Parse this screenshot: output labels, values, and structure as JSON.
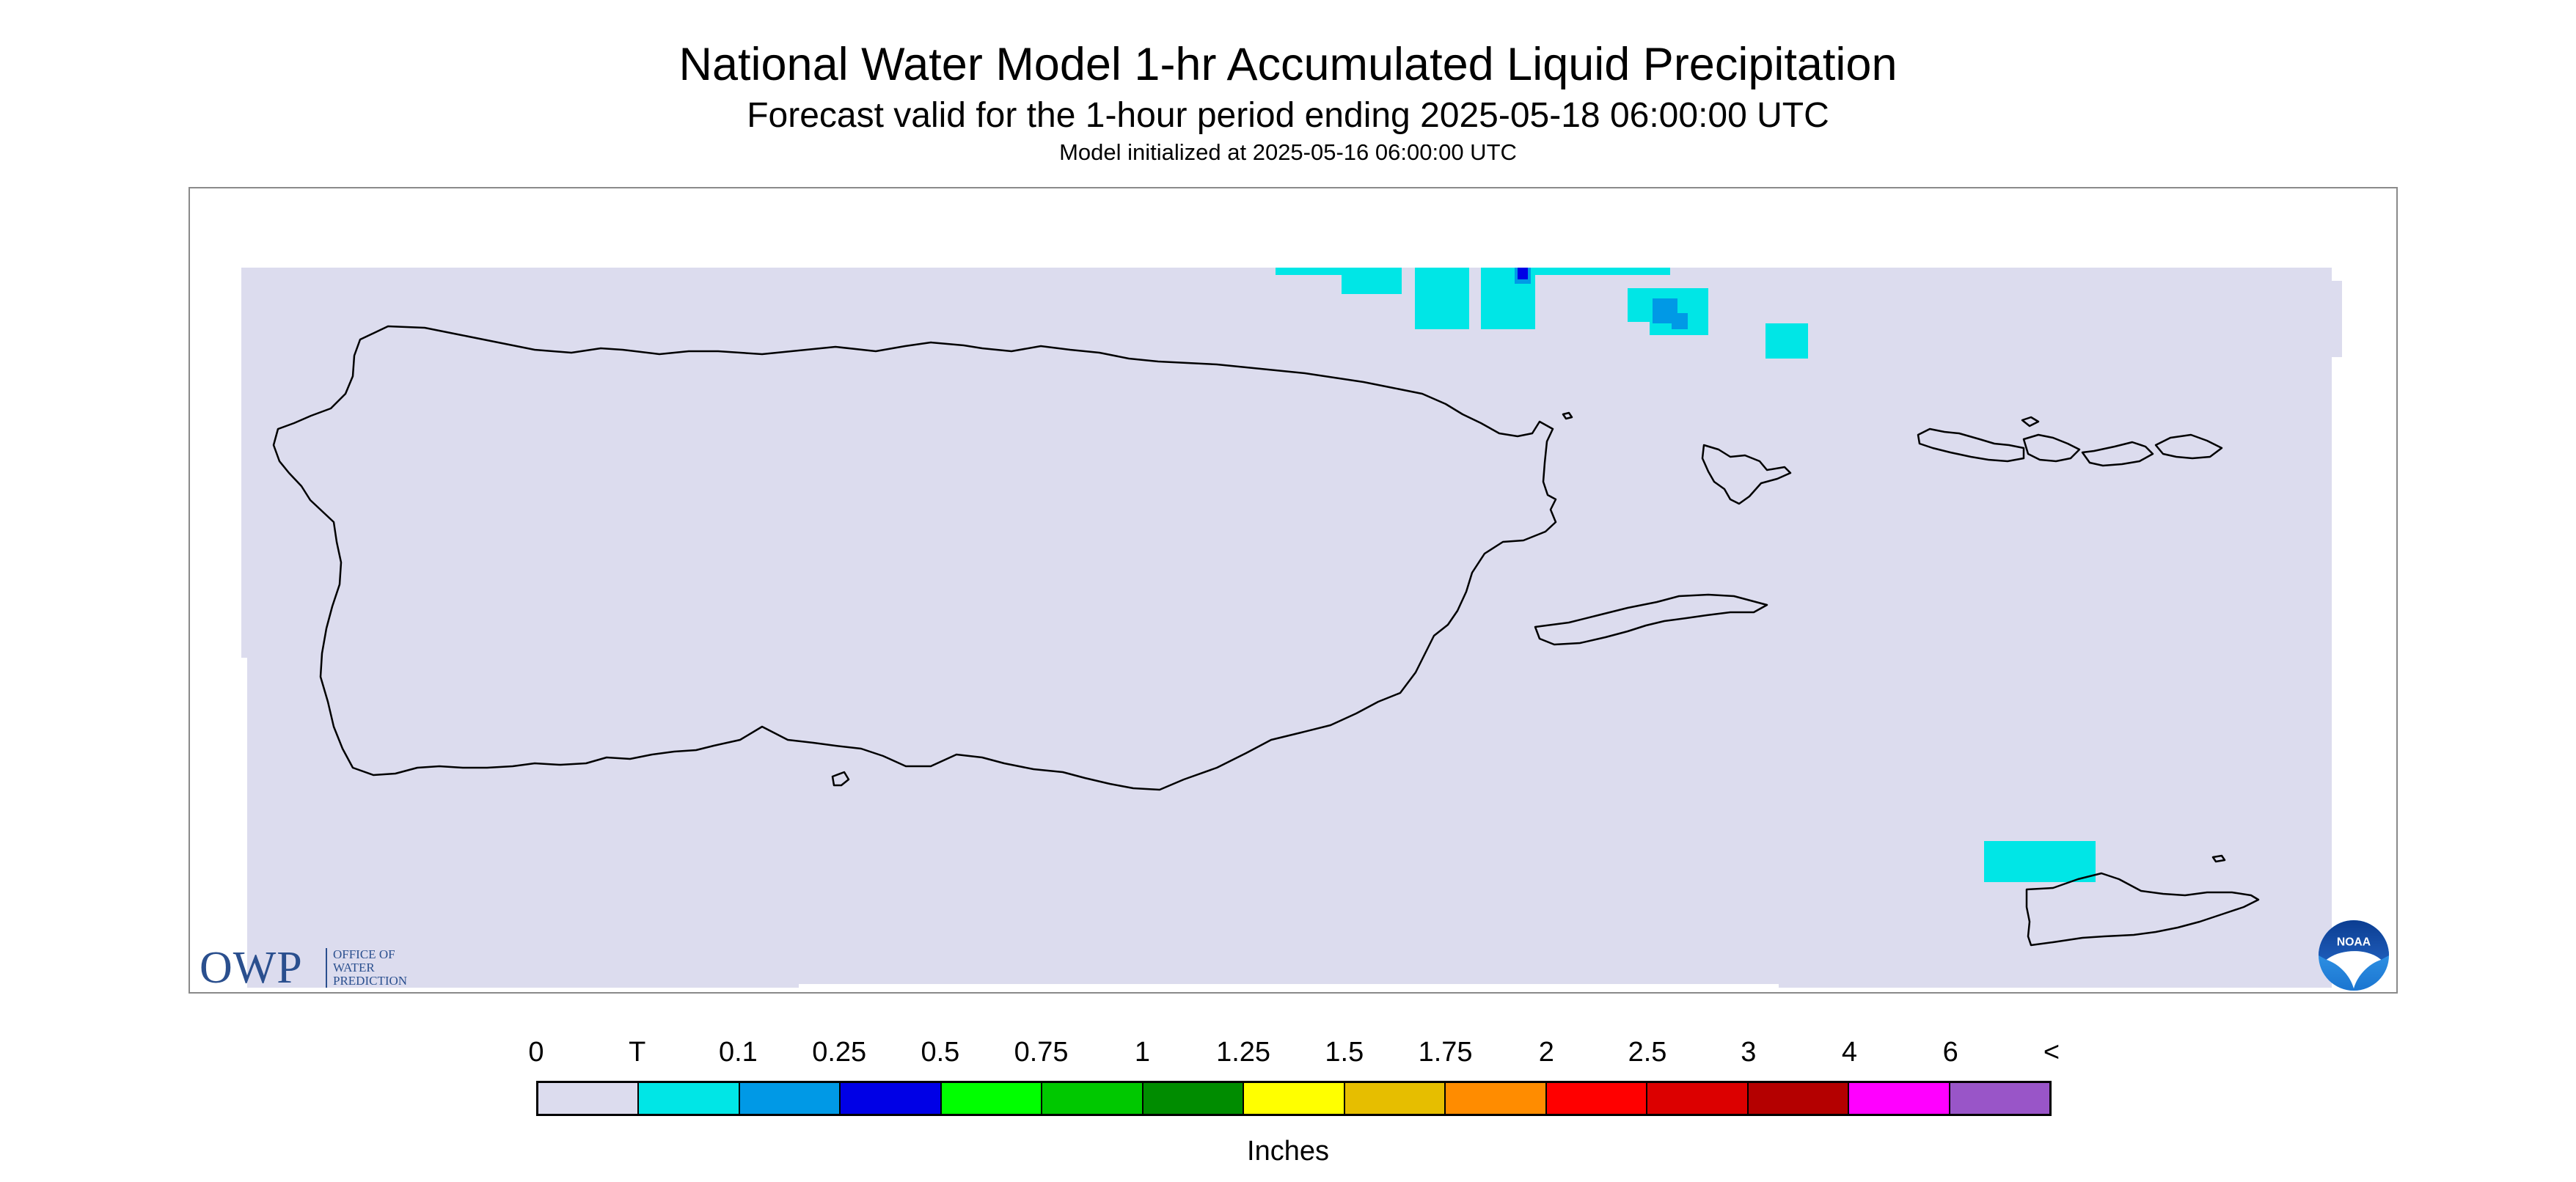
{
  "header": {
    "title": "National Water Model 1-hr Accumulated Liquid Precipitation",
    "subtitle": "Forecast valid for the 1-hour period ending 2025-05-18 06:00:00 UTC",
    "init": "Model initialized at 2025-05-16 06:00:00 UTC"
  },
  "map": {
    "region": "Puerto Rico and U.S. Virgin Islands",
    "background_color": "#dcdcee",
    "coastline_color": "#000000",
    "precip_areas": [
      {
        "category": "T",
        "color": "#00e6e6"
      },
      {
        "category": "T",
        "color": "#00e6e6"
      },
      {
        "category": "T",
        "color": "#00e6e6"
      },
      {
        "category": "T",
        "color": "#00e6e6"
      },
      {
        "category": "T",
        "color": "#00e6e6"
      },
      {
        "category": "0.1",
        "color": "#0099e6"
      },
      {
        "category": "0.25",
        "color": "#0000e6"
      },
      {
        "category": "T",
        "color": "#00e6e6"
      },
      {
        "category": "T",
        "color": "#00e6e6"
      }
    ]
  },
  "logos": {
    "owp_big": "OWP",
    "owp_small": [
      "OFFICE OF",
      "WATER",
      "PREDICTION"
    ],
    "noaa_text": "NOAA"
  },
  "legend": {
    "labels": [
      "0",
      "T",
      "0.1",
      "0.25",
      "0.5",
      "0.75",
      "1",
      "1.25",
      "1.5",
      "1.75",
      "2",
      "2.5",
      "3",
      "4",
      "6",
      "<"
    ],
    "colors": [
      "#dcdcee",
      "#00e6e6",
      "#0099e6",
      "#0000e6",
      "#00ff00",
      "#00c800",
      "#008c00",
      "#ffff00",
      "#e6be00",
      "#ff8c00",
      "#ff0000",
      "#dc0000",
      "#b40000",
      "#ff00ff",
      "#9955c8"
    ],
    "units": "Inches"
  }
}
